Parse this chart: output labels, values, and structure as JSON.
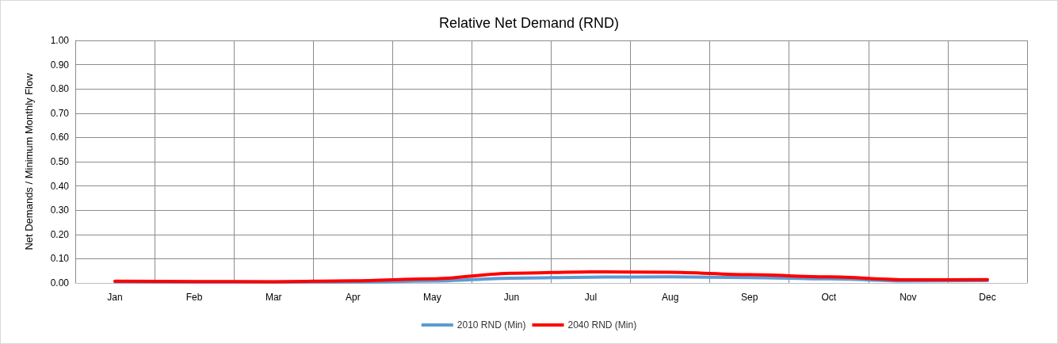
{
  "chart_data": {
    "type": "line",
    "title": "Relative Net Demand (RND)",
    "ylabel": "Net Demands / Minimum Monthly Flow",
    "categories": [
      "Jan",
      "Feb",
      "Mar",
      "Apr",
      "May",
      "Jun",
      "Jul",
      "Aug",
      "Sep",
      "Oct",
      "Nov",
      "Dec"
    ],
    "series": [
      {
        "name": "2010 RND (Min)",
        "color": "#5b9bd5",
        "values": [
          0.005,
          0.004,
          null,
          0.004,
          0.008,
          0.02,
          0.024,
          0.025,
          0.022,
          0.017,
          0.008,
          0.01
        ]
      },
      {
        "name": "2040 RND (Min)",
        "color": "#ff0000",
        "values": [
          0.007,
          0.006,
          0.005,
          0.009,
          0.017,
          0.04,
          0.046,
          0.044,
          0.034,
          0.025,
          0.013,
          0.014
        ]
      }
    ],
    "ylim": [
      0,
      1
    ],
    "yticks": [
      {
        "value": 0,
        "label": "0.00"
      },
      {
        "value": 0.1,
        "label": "0.10"
      },
      {
        "value": 0.2,
        "label": "0.20"
      },
      {
        "value": 0.3,
        "label": "0.30"
      },
      {
        "value": 0.4,
        "label": "0.40"
      },
      {
        "value": 0.5,
        "label": "0.50"
      },
      {
        "value": 0.6,
        "label": "0.60"
      },
      {
        "value": 0.7,
        "label": "0.70"
      },
      {
        "value": 0.8,
        "label": "0.80"
      },
      {
        "value": 0.9,
        "label": "0.90"
      },
      {
        "value": 1,
        "label": "1.00"
      }
    ],
    "grid": true,
    "legend": "bottom",
    "marker": "none",
    "line_style": "solid"
  }
}
